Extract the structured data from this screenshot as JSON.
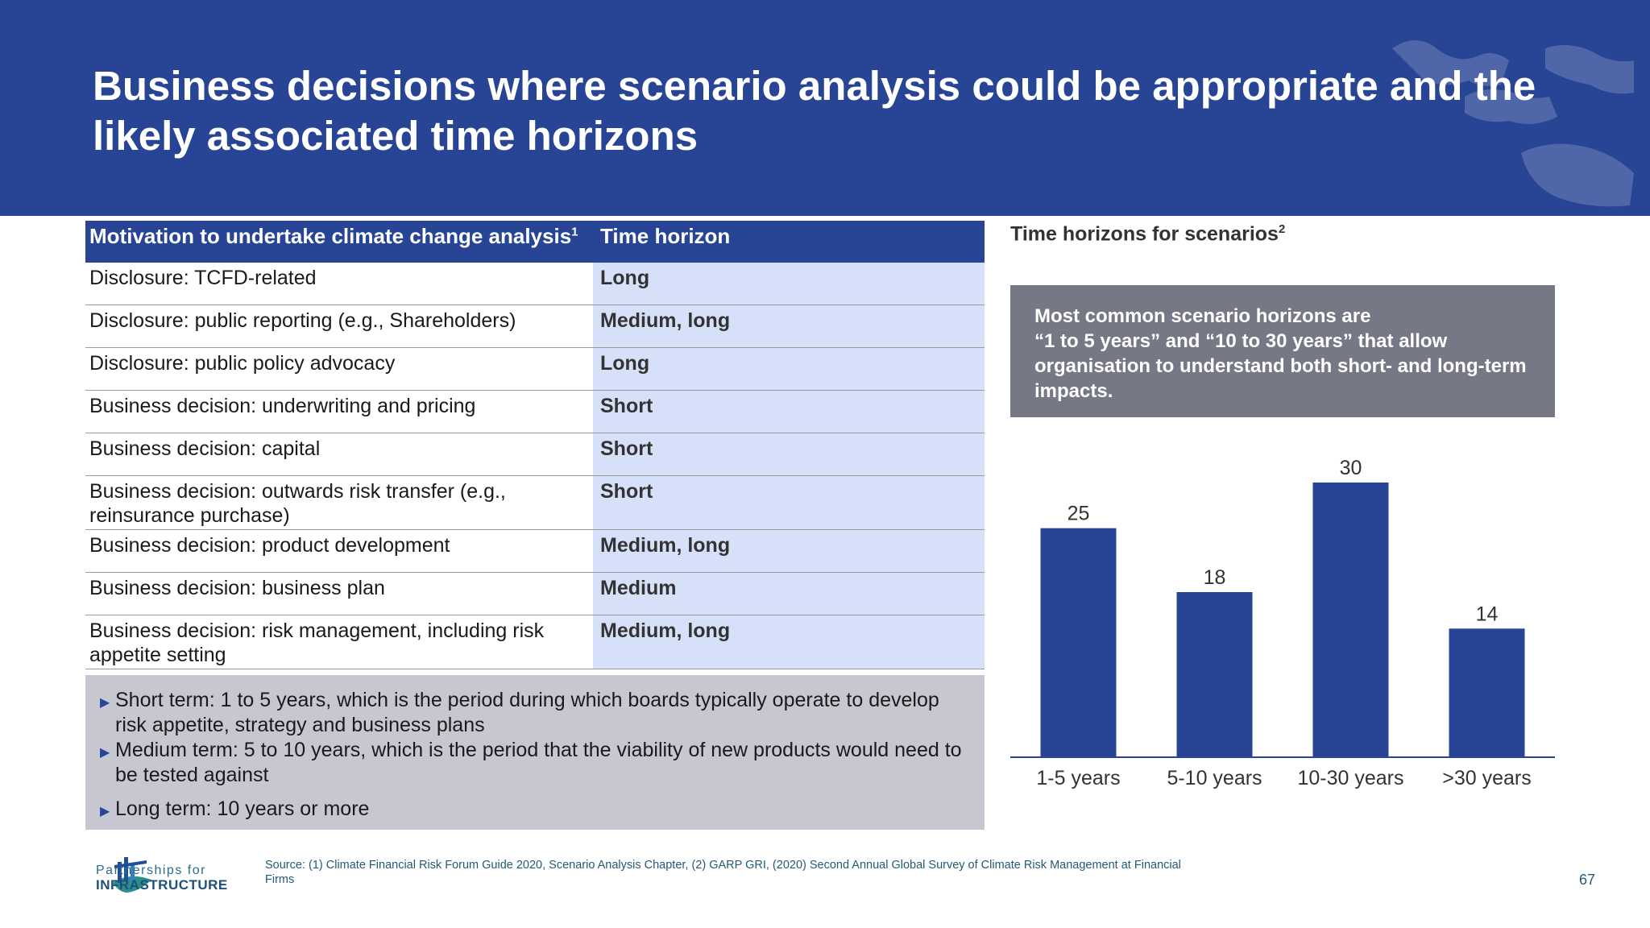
{
  "title": "Business decisions where scenario analysis could be appropriate and the likely associated time horizons",
  "table": {
    "header_motivation": "Motivation to undertake climate change analysis",
    "header_motivation_sup": "1",
    "header_time": "Time horizon",
    "rows": [
      {
        "motivation": "Disclosure: TCFD-related",
        "horizon": "Long"
      },
      {
        "motivation": "Disclosure: public reporting (e.g., Shareholders)",
        "horizon": "Medium, long"
      },
      {
        "motivation": "Disclosure: public policy advocacy",
        "horizon": "Long"
      },
      {
        "motivation": "Business decision: underwriting and pricing",
        "horizon": "Short"
      },
      {
        "motivation": "Business decision: capital",
        "horizon": "Short"
      },
      {
        "motivation": "Business decision: outwards risk transfer (e.g., reinsurance purchase)",
        "horizon": "Short"
      },
      {
        "motivation": "Business decision: product development",
        "horizon": "Medium, long"
      },
      {
        "motivation": "Business decision: business plan",
        "horizon": "Medium"
      },
      {
        "motivation": "Business decision: risk management, including risk appetite setting",
        "horizon": "Medium, long"
      }
    ]
  },
  "notes": [
    "Short term: 1 to 5 years, which is the period during which boards typically operate to develop risk appetite, strategy and business plans",
    "Medium term: 5 to 10 years, which is the period that the viability of new products would need to be tested against",
    "Long term: 10 years or more"
  ],
  "chart_panel": {
    "title": "Time horizons for scenarios",
    "title_sup": "2",
    "callout": "Most common scenario horizons are\n“1 to 5 years” and “10 to 30 years” that allow organisation to understand both short- and long-term impacts."
  },
  "chart_data": {
    "type": "bar",
    "categories": [
      "1-5 years",
      "5-10 years",
      "10-30 years",
      ">30 years"
    ],
    "values": [
      25,
      18,
      30,
      14
    ],
    "title": "Time horizons for scenarios",
    "xlabel": "",
    "ylabel": "",
    "ylim": [
      0,
      30
    ],
    "grid": false,
    "color": "#284595"
  },
  "footer": {
    "logo_line1": "Partnerships for",
    "logo_line2": "INFRASTRUCTURE",
    "source": "Source: (1) Climate Financial Risk Forum Guide 2020, Scenario Analysis Chapter, (2) GARP GRI, (2020) Second Annual Global Survey of Climate Risk Management at Financial Firms",
    "page_number": "67"
  },
  "colors": {
    "brand_blue": "#284595",
    "horizon_cell": "#d6e0f8",
    "notes_bg": "#c6c7d1",
    "callout_bg": "#777885"
  }
}
